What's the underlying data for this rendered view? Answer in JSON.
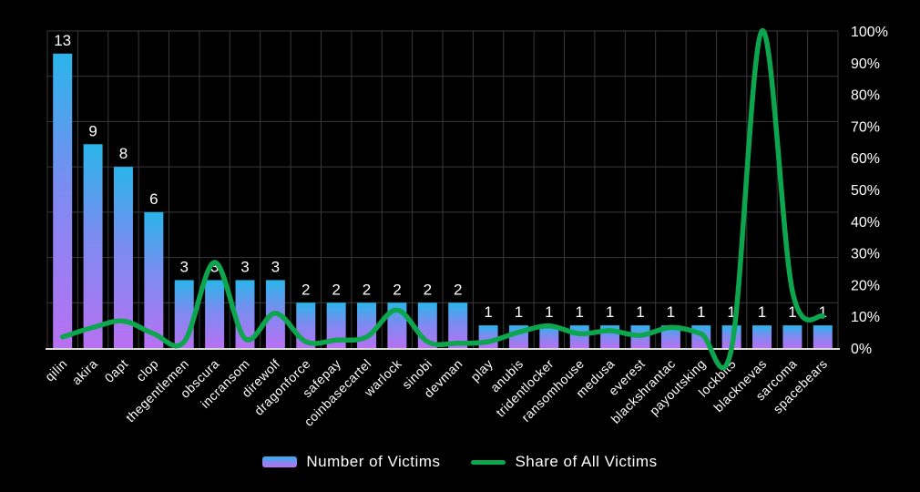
{
  "chart_data": {
    "type": "combo-bar-line",
    "title": "",
    "categories": [
      "qilin",
      "akira",
      "0apt",
      "clop",
      "thegentlemen",
      "obscura",
      "incransom",
      "direwolf",
      "dragonforce",
      "safepay",
      "coinbasecartel",
      "warlock",
      "sinobi",
      "devman",
      "play",
      "anubis",
      "tridentlocker",
      "ransomhouse",
      "medusa",
      "everest",
      "blackshrantac",
      "payoutsking",
      "lockbit5",
      "blacknevas",
      "sarcoma",
      "spacebears"
    ],
    "series": [
      {
        "name": "Number of Victims",
        "type": "bar",
        "axis": "left",
        "values": [
          13,
          9,
          8,
          6,
          3,
          3,
          3,
          3,
          2,
          2,
          2,
          2,
          2,
          2,
          1,
          1,
          1,
          1,
          1,
          1,
          1,
          1,
          1,
          1,
          1,
          1
        ],
        "value_labels_shown": true
      },
      {
        "name": "Share of All Victims",
        "type": "line",
        "axis": "right",
        "unit": "percent",
        "values": [
          3.5,
          6.5,
          8.5,
          4.5,
          2,
          27,
          3,
          11,
          2,
          2.5,
          3.5,
          12,
          2,
          1.5,
          2,
          5,
          7,
          4.5,
          5.5,
          4,
          6.5,
          4.5,
          0,
          100,
          18,
          10
        ]
      }
    ],
    "left_axis": {
      "min": 0,
      "max": 14,
      "grid_step": 2,
      "tick_labels_visible": false
    },
    "right_axis": {
      "min": 0,
      "max": 100,
      "tick_labels": [
        "0%",
        "10%",
        "20%",
        "30%",
        "40%",
        "50%",
        "60%",
        "70%",
        "80%",
        "90%",
        "100%"
      ]
    },
    "legend": [
      {
        "label": "Number of Victims",
        "swatch": "bar-gradient"
      },
      {
        "label": "Share of All Victims",
        "swatch": "line"
      }
    ],
    "grid": {
      "vertical": true,
      "horizontal": true
    },
    "colors": {
      "background": "#000000",
      "bar_gradient_top": "#2ab5ea",
      "bar_gradient_mid": "#7b8cf0",
      "bar_gradient_bottom": "#b871f2",
      "line": "#0da64f",
      "grid": "#3a3a3a",
      "axis_line": "#d8d8d8",
      "text": "#ffffff"
    }
  }
}
